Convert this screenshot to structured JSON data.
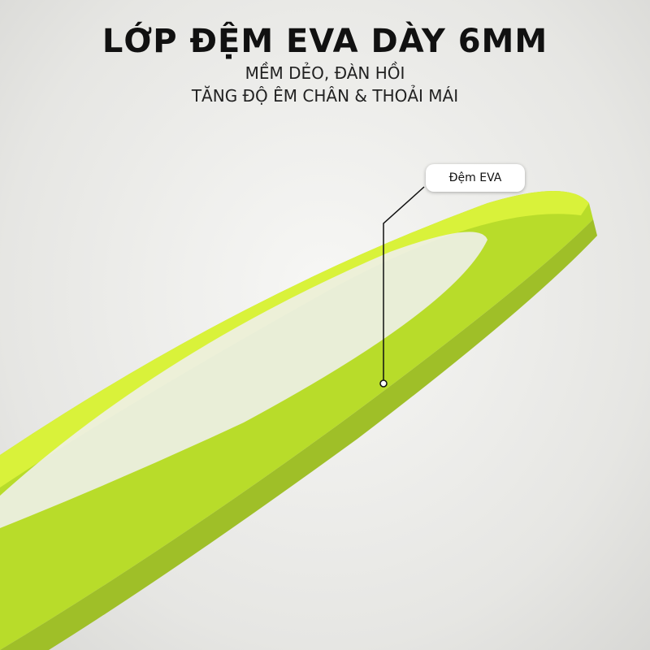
{
  "header": {
    "title": "LỚP ĐỆM EVA DÀY 6MM",
    "lines": [
      "MỀM DẺO, ĐÀN HỒI",
      "TĂNG ĐỘ ÊM CHÂN & THOẢI MÁI"
    ]
  },
  "callout": {
    "label": "Đệm EVA"
  }
}
